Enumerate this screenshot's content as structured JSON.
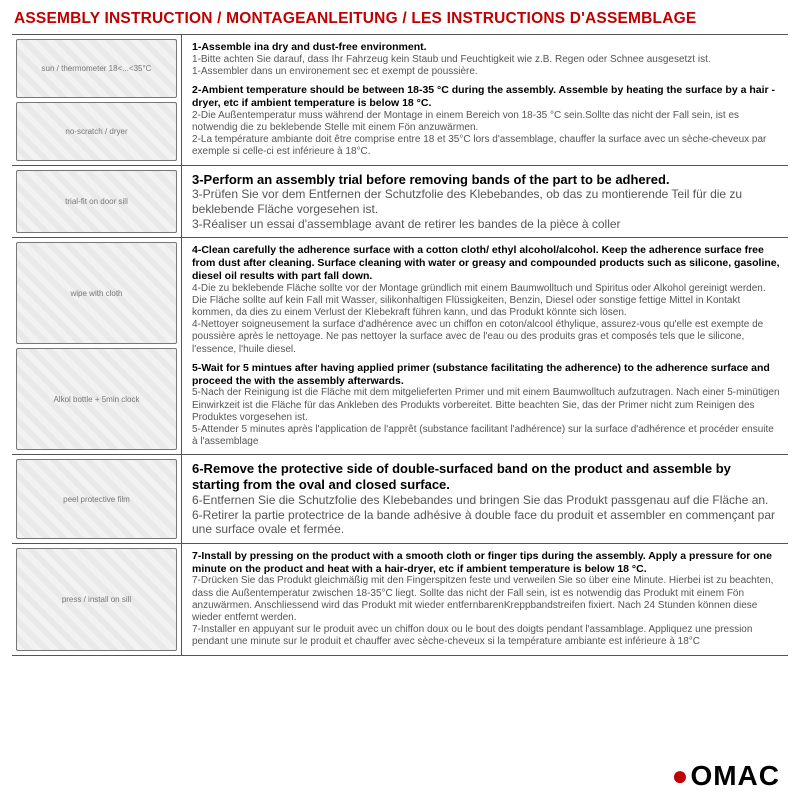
{
  "colors": {
    "accent": "#c00000",
    "rule": "#555555",
    "muted": "#555555",
    "bg": "#ffffff"
  },
  "title": "ASSEMBLY INSTRUCTION / MONTAGEANLEITUNG / LES INSTRUCTIONS D'ASSEMBLAGE",
  "logo": {
    "text": "OMAC",
    "dotChar": "●"
  },
  "rows": [
    {
      "images": [
        "sun / thermometer 18<...<35°C",
        "no-scratch / dryer"
      ],
      "steps": [
        {
          "en": "1-Assemble ina dry and dust-free environment.",
          "de": "1-Bitte achten Sie darauf, dass Ihr Fahrzeug kein Staub und Feuchtigkeit wie z.B. Regen oder Schnee ausgesetzt ist.",
          "fr": "1-Assembler dans un environement sec et exempt de poussière."
        },
        {
          "en": "2-Ambient temperature should be between 18-35 °C  during the assembly. Assemble by heating the surface by a hair -dryer, etc if ambient temperature is below 18 °C.",
          "de": "2-Die Außentemperatur muss während der Montage in einem Bereich von 18-35 °C  sein.Sollte das nicht der Fall sein, ist es notwendig die zu beklebende Stelle mit einem Fön anzuwärmen.",
          "fr": "2-La température ambiante doit être comprise entre 18 et 35°C lors d'assemblage, chauffer la surface avec un sèche-cheveux par exemple si celle-ci est inférieure à 18°C."
        }
      ]
    },
    {
      "big": true,
      "images": [
        "trial-fit on door sill"
      ],
      "steps": [
        {
          "en": "3-Perform an assembly trial before removing bands of the part to be adhered.",
          "de": "3-Prüfen Sie vor dem Entfernen der Schutzfolie des Klebebandes, ob das zu montierende Teil für die zu beklebende Fläche vorgesehen ist.",
          "fr": "3-Réaliser un essai d'assemblage avant de retirer les bandes de la pièce à coller"
        }
      ]
    },
    {
      "images": [
        "wipe with cloth",
        "Alkol bottle + 5min clock"
      ],
      "steps": [
        {
          "en": "4-Clean carefully the adherence surface with a cotton cloth/ ethyl alcohol/alcohol. Keep the adherence surface free from dust after cleaning. Surface cleaning with water or greasy and compounded products such as silicone, gasoline, diesel oil results with part fall down.",
          "de": "4-Die zu beklebende Fläche sollte vor der Montage gründlich mit einem Baumwolltuch und Spiritus oder Alkohol gereinigt werden. Die Fläche sollte auf kein Fall mit Wasser, silikonhaltigen Flüssigkeiten, Benzin, Diesel oder sonstige fettige Mittel in Kontakt kommen, da dies zu einem Verlust der Klebekraft führen kann, und das Produkt könnte sich lösen.",
          "fr": "4-Nettoyer soigneusement la surface d'adhérence avec un chiffon en coton/alcool éthylique, assurez-vous qu'elle est exempte de poussière après le nettoyage. Ne pas nettoyer la surface avec de l'eau ou des produits gras et composés tels que le silicone, l'essence, l'huile diesel."
        },
        {
          "en": "5-Wait for 5 mintues after having applied primer (substance facilitating the adherence) to the adherence surface and proceed the with the assembly afterwards.",
          "de": "5-Nach der Reinigung ist die Fläche mit dem mitgelieferten Primer und mit einem Baumwolltuch aufzutragen. Nach einer 5-minütigen Einwirkzeit ist die Fläche für das Ankleben des Produkts vorbereitet. Bitte beachten Sie, das der Primer nicht zum Reinigen des Produktes vorgesehen ist.",
          "fr": "5-Attender 5 minutes après l'application de l'apprêt (substance facilitant l'adhérence) sur la surface d'adhérence et procéder ensuite à l'assemblage"
        }
      ]
    },
    {
      "big": true,
      "images": [
        "peel protective film"
      ],
      "steps": [
        {
          "en": "6-Remove the protective side of double-surfaced band on the product and assemble by starting from the oval and closed surface.",
          "de": "6-Entfernen Sie die Schutzfolie des Klebebandes und bringen Sie das Produkt passgenau auf die Fläche an.",
          "fr": "6-Retirer la partie protectrice de la bande adhésive à double face du produit et assembler en commençant par une surface ovale et fermée."
        }
      ]
    },
    {
      "images": [
        "press / install on sill"
      ],
      "steps": [
        {
          "en": "7-Install by pressing on the product with a smooth cloth or finger tips during the assembly. Apply a pressure for one minute on the product and heat with a hair-dryer, etc if ambient temperature is below 18 °C.",
          "de": "7-Drücken Sie das Produkt gleichmäßig mit den Fingerspitzen feste und verweilen Sie so über eine Minute. Hierbei ist zu beachten, dass die Außentemperatur zwischen 18-35°C liegt. Sollte das nicht der Fall sein, ist es notwendig das Produkt mit einem Fön anzuwärmen. Anschliessend wird das Produkt mit wieder entfernbarenKreppbandstreifen fixiert. Nach 24 Stunden können diese wieder entfernt werden.",
          "fr": "7-Installer en appuyant sur le produit avec un chiffon doux ou le bout des doigts pendant l'assamblage. Appliquez une pression pendant une minute sur le produit et chauffer avec sèche-cheveux si la température ambiante est inférieure à 18°C"
        }
      ]
    }
  ]
}
